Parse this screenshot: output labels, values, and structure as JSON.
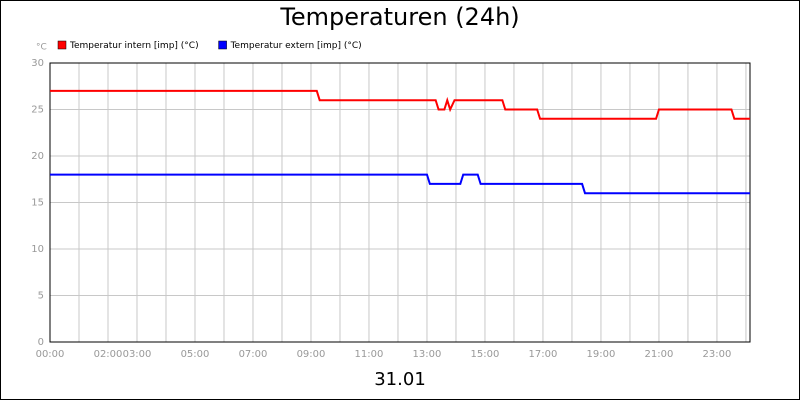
{
  "chart_data": {
    "type": "line",
    "title": "Temperaturen (24h)",
    "y_label": "°C",
    "x_label": "31.01",
    "xlim": [
      0,
      24.14
    ],
    "ylim": [
      0,
      30
    ],
    "yticks": [
      0,
      5,
      10,
      15,
      20,
      25,
      30
    ],
    "xticks": [
      {
        "value": 0,
        "label": "00:00"
      },
      {
        "value": 2,
        "label": "02:00"
      },
      {
        "value": 3,
        "label": "03:00"
      },
      {
        "value": 5,
        "label": "05:00"
      },
      {
        "value": 7,
        "label": "07:00"
      },
      {
        "value": 9,
        "label": "09:00"
      },
      {
        "value": 11,
        "label": "11:00"
      },
      {
        "value": 13,
        "label": "13:00"
      },
      {
        "value": 15,
        "label": "15:00"
      },
      {
        "value": 17,
        "label": "17:00"
      },
      {
        "value": 19,
        "label": "19:00"
      },
      {
        "value": 21,
        "label": "21:00"
      },
      {
        "value": 23,
        "label": "23:00"
      }
    ],
    "xminor": [
      1,
      4,
      6,
      8,
      10,
      12,
      14,
      16,
      18,
      20,
      22,
      24
    ],
    "grid": true,
    "series": [
      {
        "name": "Temperatur intern [imp] (°C)",
        "color": "#ff0000",
        "x": [
          0,
          9.2,
          9.3,
          13.3,
          13.4,
          13.6,
          13.7,
          13.8,
          13.95,
          15.6,
          15.7,
          16.8,
          16.9,
          20.9,
          21.0,
          23.5,
          23.6,
          24.14
        ],
        "values": [
          27,
          27,
          26,
          26,
          25,
          25,
          26,
          25,
          26,
          26,
          25,
          25,
          24,
          24,
          25,
          25,
          24,
          24
        ]
      },
      {
        "name": "Temperatur extern [imp] (°C)",
        "color": "#0000ff",
        "x": [
          0,
          13.0,
          13.1,
          14.15,
          14.25,
          14.75,
          14.85,
          18.35,
          18.45,
          24.14
        ],
        "values": [
          18,
          18,
          17,
          17,
          18,
          18,
          17,
          17,
          16,
          16
        ]
      }
    ]
  }
}
